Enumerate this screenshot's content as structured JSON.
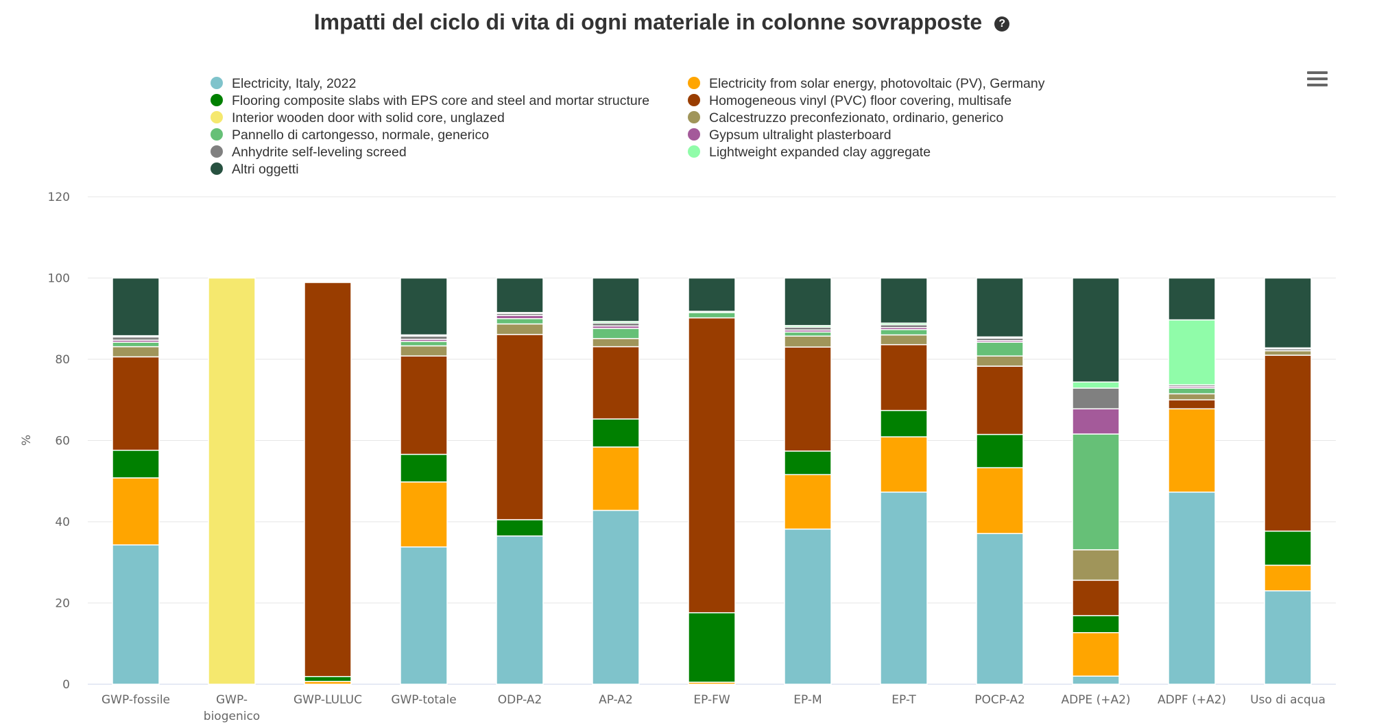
{
  "title": "Impatti del ciclo di vita di ogni materiale in colonne sovrapposte",
  "help_icon": "question-circle-icon",
  "menu_icon": "hamburger-menu-icon",
  "chart_data": {
    "type": "bar",
    "stacked": true,
    "ylabel": "%",
    "ylim": [
      0,
      120
    ],
    "yticks": [
      0,
      20,
      40,
      60,
      80,
      100,
      120
    ],
    "grid": true,
    "legend_placement": "top",
    "categories": [
      [
        "GWP-fossile"
      ],
      [
        "GWP-",
        "biogenico"
      ],
      [
        "GWP-LULUC"
      ],
      [
        "GWP-totale"
      ],
      [
        "ODP-A2"
      ],
      [
        "AP-A2"
      ],
      [
        "EP-FW"
      ],
      [
        "EP-M"
      ],
      [
        "EP-T"
      ],
      [
        "POCP-A2"
      ],
      [
        "ADPE (+A2)"
      ],
      [
        "ADPF (+A2)"
      ],
      [
        "Uso di acqua"
      ]
    ],
    "series": [
      {
        "name": "Electricity, Italy, 2022",
        "color": "#7fc3cb",
        "values": [
          34.3,
          0,
          0,
          33.8,
          36.5,
          42.8,
          0,
          38.2,
          47.3,
          37.1,
          2.0,
          47.3,
          23.0
        ]
      },
      {
        "name": "Electricity from solar energy, photovoltaic (PV), Germany",
        "color": "#ffa500",
        "values": [
          16.5,
          0,
          0.7,
          16.0,
          0,
          15.6,
          0.5,
          13.4,
          13.6,
          16.2,
          10.7,
          20.5,
          6.3
        ]
      },
      {
        "name": "Flooring composite slabs with EPS core and steel and mortar structure",
        "color": "#008000",
        "values": [
          6.8,
          0,
          1.2,
          6.8,
          4.0,
          6.9,
          17.1,
          5.8,
          6.5,
          8.2,
          4.2,
          0,
          8.4
        ]
      },
      {
        "name": "Homogeneous vinyl (PVC) floor covering, multisafe",
        "color": "#993d00",
        "values": [
          23.0,
          0,
          97.0,
          24.2,
          45.6,
          17.8,
          72.6,
          25.6,
          16.2,
          16.8,
          8.7,
          2.2,
          43.3
        ]
      },
      {
        "name": "Interior wooden door with solid core, unglazed",
        "color": "#f5e86e",
        "values": [
          0,
          100,
          0,
          0,
          0,
          0,
          0,
          0,
          0,
          0,
          0,
          0,
          0
        ]
      },
      {
        "name": "Calcestruzzo preconfezionato, ordinario, generico",
        "color": "#a0955a",
        "values": [
          2.5,
          0,
          0,
          2.5,
          2.6,
          2.0,
          0,
          2.7,
          2.4,
          2.5,
          7.5,
          1.5,
          1.1
        ]
      },
      {
        "name": "Pannello di cartongesso, normale, generico",
        "color": "#66c077",
        "values": [
          1.1,
          0,
          0,
          1.1,
          1.3,
          2.5,
          1.3,
          1.0,
          1.3,
          3.4,
          28.5,
          1.4,
          0
        ]
      },
      {
        "name": "Gypsum ultralight plasterboard",
        "color": "#a45a9a",
        "values": [
          0.5,
          0,
          0,
          0.5,
          0.8,
          0.6,
          0,
          0.5,
          0.5,
          0.4,
          6.2,
          0.4,
          0
        ]
      },
      {
        "name": "Anhydrite self-leveling screed",
        "color": "#808080",
        "values": [
          0.8,
          0,
          0,
          0.8,
          0.5,
          0.7,
          0,
          0.7,
          0.7,
          0.6,
          5.1,
          0.4,
          0.5
        ]
      },
      {
        "name": "Lightweight expanded clay aggregate",
        "color": "#90fca9",
        "values": [
          0.3,
          0,
          0,
          0.3,
          0.2,
          0.4,
          0.3,
          0.4,
          0.4,
          0.3,
          1.5,
          16.0,
          0.2
        ]
      },
      {
        "name": "Altri oggetti",
        "color": "#275140",
        "values": [
          14.2,
          0,
          0,
          14.0,
          8.5,
          10.7,
          8.2,
          11.7,
          11.1,
          14.5,
          25.6,
          10.3,
          17.2
        ]
      }
    ],
    "legend_order": [
      0,
      1,
      2,
      3,
      4,
      5,
      6,
      7,
      8,
      9,
      10
    ]
  }
}
